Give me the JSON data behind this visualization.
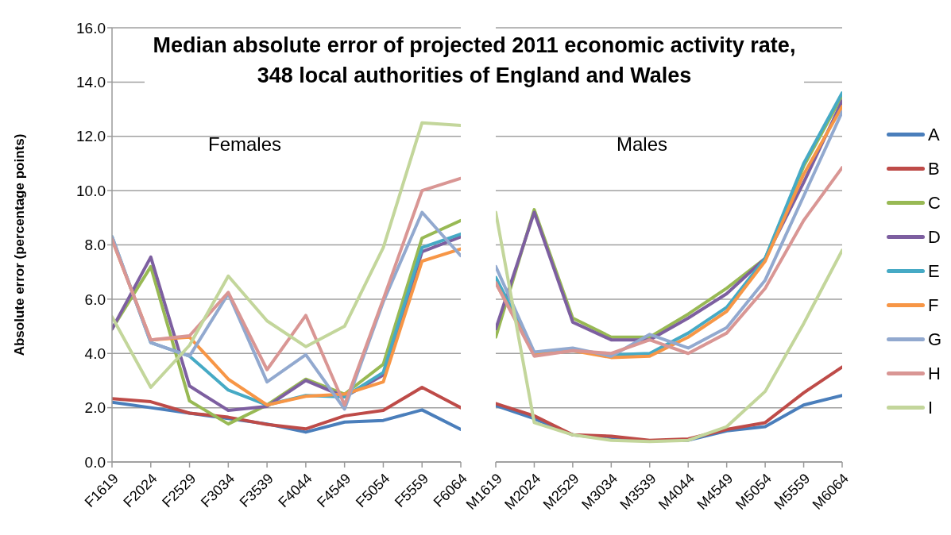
{
  "chart_data": [
    {
      "type": "line",
      "title": "Median absolute error of projected 2011 economic activity rate, 348 local authorities of England and Wales",
      "ylabel": "Absolute error (percentage points)",
      "annotations": [
        "Females"
      ],
      "categories": [
        "F1619",
        "F2024",
        "F2529",
        "F3034",
        "F3539",
        "F4044",
        "F4549",
        "F5054",
        "F5559",
        "F6064"
      ],
      "ylim": [
        0,
        16
      ],
      "yticks": [
        {
          "value": 0,
          "label": "0.0"
        },
        {
          "value": 2,
          "label": "2.0"
        },
        {
          "value": 4,
          "label": "4.0"
        },
        {
          "value": 6,
          "label": "6.0"
        },
        {
          "value": 8,
          "label": "8.0"
        },
        {
          "value": 10,
          "label": "10.0"
        },
        {
          "value": 12,
          "label": "12.0"
        },
        {
          "value": 14,
          "label": "14.0"
        },
        {
          "value": 16,
          "label": "16.0"
        }
      ],
      "grid": "y",
      "series": [
        {
          "color": "#4a7ebb",
          "values": [
            2.2,
            2.0,
            1.8,
            1.6,
            1.4,
            1.1,
            1.47,
            1.53,
            1.92,
            1.2
          ]
        },
        {
          "color": "#be4b48",
          "values": [
            2.33,
            2.22,
            1.8,
            1.65,
            1.38,
            1.22,
            1.7,
            1.9,
            2.75,
            2.0
          ]
        },
        {
          "color": "#98b954",
          "values": [
            4.9,
            7.2,
            2.25,
            1.4,
            2.1,
            3.05,
            2.5,
            3.6,
            8.25,
            8.9
          ]
        },
        {
          "color": "#7d5fa0",
          "values": [
            4.9,
            7.55,
            2.8,
            1.9,
            2.05,
            3.0,
            2.4,
            3.2,
            7.75,
            8.3
          ]
        },
        {
          "color": "#46aac5",
          "values": [
            8.3,
            4.4,
            3.9,
            2.65,
            2.1,
            2.45,
            2.4,
            3.3,
            7.9,
            8.4
          ]
        },
        {
          "color": "#f79646",
          "values": [
            8.2,
            4.5,
            4.6,
            3.05,
            2.1,
            2.42,
            2.5,
            2.95,
            7.4,
            7.85
          ]
        },
        {
          "color": "#92a9cf",
          "values": [
            8.3,
            4.4,
            3.9,
            6.2,
            2.95,
            3.95,
            1.95,
            5.9,
            9.2,
            7.6
          ]
        },
        {
          "color": "#d99694",
          "values": [
            8.2,
            4.5,
            4.65,
            6.25,
            3.4,
            5.4,
            2.1,
            6.0,
            10.0,
            10.45
          ]
        },
        {
          "color": "#c3d69b",
          "values": [
            5.35,
            2.75,
            4.3,
            6.85,
            5.2,
            4.25,
            5.0,
            7.9,
            12.5,
            12.4
          ]
        }
      ]
    },
    {
      "type": "line",
      "annotations": [
        "Males"
      ],
      "tick_labels": "x",
      "legend": "right",
      "categories": [
        "M1619",
        "M2024",
        "M2529",
        "M3034",
        "M3539",
        "M4044",
        "M4549",
        "M5054",
        "M5559",
        "M6064"
      ],
      "ylim": [
        0,
        16
      ],
      "yticks": [
        0,
        2,
        4,
        6,
        8,
        10,
        12,
        14,
        16
      ],
      "grid": "y",
      "series": [
        {
          "name": "A",
          "color": "#4a7ebb",
          "values": [
            2.08,
            1.6,
            1.0,
            0.85,
            0.78,
            0.8,
            1.15,
            1.3,
            2.1,
            2.45
          ]
        },
        {
          "name": "B",
          "color": "#be4b48",
          "values": [
            2.15,
            1.7,
            1.0,
            0.95,
            0.8,
            0.85,
            1.2,
            1.45,
            2.55,
            3.5
          ]
        },
        {
          "name": "C",
          "color": "#98b954",
          "values": [
            4.6,
            9.3,
            5.3,
            4.6,
            4.6,
            5.45,
            6.4,
            7.5,
            10.9,
            13.5
          ]
        },
        {
          "name": "D",
          "color": "#7d5fa0",
          "values": [
            4.9,
            9.2,
            5.15,
            4.5,
            4.5,
            5.3,
            6.2,
            7.5,
            10.3,
            13.3
          ]
        },
        {
          "name": "E",
          "color": "#46aac5",
          "values": [
            6.8,
            4.0,
            4.1,
            3.95,
            4.0,
            4.75,
            5.7,
            7.5,
            11.0,
            13.6
          ]
        },
        {
          "name": "F",
          "color": "#f79646",
          "values": [
            6.6,
            3.95,
            4.1,
            3.85,
            3.9,
            4.6,
            5.55,
            7.4,
            10.6,
            13.1
          ]
        },
        {
          "name": "G",
          "color": "#92a9cf",
          "values": [
            7.2,
            4.05,
            4.2,
            3.9,
            4.7,
            4.2,
            4.95,
            6.7,
            9.8,
            12.9
          ]
        },
        {
          "name": "H",
          "color": "#d99694",
          "values": [
            6.6,
            3.9,
            4.1,
            4.0,
            4.5,
            4.0,
            4.75,
            6.4,
            8.9,
            10.85
          ]
        },
        {
          "name": "I",
          "color": "#c3d69b",
          "values": [
            9.2,
            1.45,
            1.0,
            0.8,
            0.75,
            0.8,
            1.3,
            2.6,
            5.1,
            7.8
          ]
        }
      ]
    }
  ]
}
